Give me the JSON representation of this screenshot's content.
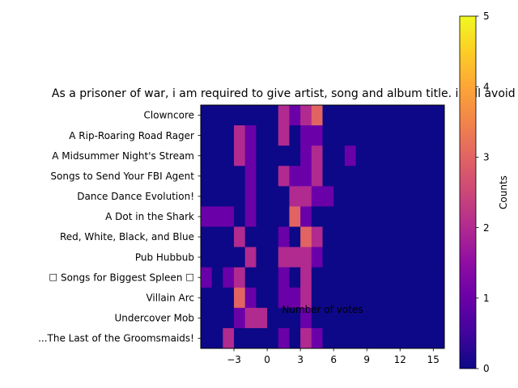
{
  "chart_data": {
    "type": "heatmap",
    "title": "As a prisoner of war, i am required to give artist, song and album title. i will avoid saying more.",
    "xlabel": "Number of votes",
    "ylabel": "",
    "x_bins": [
      -6,
      -5,
      -4,
      -3,
      -2,
      -1,
      0,
      1,
      2,
      3,
      4,
      5,
      6,
      7,
      8,
      9,
      10,
      11,
      12,
      13,
      14,
      15,
      16
    ],
    "xlim": [
      -6,
      16
    ],
    "x_ticks": [
      -3,
      0,
      3,
      6,
      9,
      12,
      15
    ],
    "x_tick_labels": [
      "−3",
      "0",
      "3",
      "6",
      "9",
      "12",
      "15"
    ],
    "categories": [
      "Clowncore",
      "A Rip-Roaring Road Rager",
      "A Midsummer Night's Stream",
      "Songs to Send Your FBI Agent",
      "Dance Dance Evolution!",
      "A Dot in the Shark",
      "Red, White, Black, and Blue",
      "Pub Hubbub",
      "☐ Songs for Biggest Spleen ☐",
      "Villain Arc",
      "Undercover Mob",
      "...The Last of the Groomsmaids!"
    ],
    "counts": [
      [
        0,
        0,
        0,
        0,
        0,
        0,
        0,
        2,
        1,
        2,
        3,
        0,
        0,
        0,
        0,
        0,
        0,
        0,
        0,
        0,
        0,
        0
      ],
      [
        0,
        0,
        0,
        2,
        1,
        0,
        0,
        2,
        0,
        1,
        1,
        0,
        0,
        0,
        0,
        0,
        0,
        0,
        0,
        0,
        0,
        0
      ],
      [
        0,
        0,
        0,
        2,
        1,
        0,
        0,
        0,
        0,
        1,
        2,
        0,
        0,
        1,
        0,
        0,
        0,
        0,
        0,
        0,
        0,
        0
      ],
      [
        0,
        0,
        0,
        0,
        1,
        0,
        0,
        2,
        1,
        1,
        2,
        0,
        0,
        0,
        0,
        0,
        0,
        0,
        0,
        0,
        0,
        0
      ],
      [
        0,
        0,
        0,
        0,
        1,
        0,
        0,
        0,
        2,
        2,
        1,
        1,
        0,
        0,
        0,
        0,
        0,
        0,
        0,
        0,
        0,
        0
      ],
      [
        1,
        1,
        1,
        0,
        1,
        0,
        0,
        0,
        3,
        1,
        0,
        0,
        0,
        0,
        0,
        0,
        0,
        0,
        0,
        0,
        0,
        0
      ],
      [
        0,
        0,
        0,
        2,
        0,
        0,
        0,
        1,
        0,
        3,
        2,
        0,
        0,
        0,
        0,
        0,
        0,
        0,
        0,
        0,
        0,
        0
      ],
      [
        0,
        0,
        0,
        0,
        2,
        0,
        0,
        2,
        2,
        2,
        1,
        0,
        0,
        0,
        0,
        0,
        0,
        0,
        0,
        0,
        0,
        0
      ],
      [
        1,
        0,
        1,
        2,
        0,
        0,
        0,
        1,
        0,
        2,
        0,
        0,
        0,
        0,
        0,
        0,
        0,
        0,
        0,
        0,
        0,
        0
      ],
      [
        0,
        0,
        0,
        3,
        1,
        0,
        0,
        1,
        1,
        2,
        0,
        0,
        0,
        0,
        0,
        0,
        0,
        0,
        0,
        0,
        0,
        0
      ],
      [
        0,
        0,
        0,
        1,
        2,
        2,
        0,
        0,
        0,
        1,
        0,
        0,
        0,
        0,
        0,
        0,
        0,
        0,
        0,
        0,
        0,
        0
      ],
      [
        0,
        0,
        2,
        0,
        0,
        0,
        0,
        1,
        0,
        2,
        1,
        0,
        0,
        0,
        0,
        0,
        0,
        0,
        0,
        0,
        0,
        0
      ]
    ],
    "colorbar": {
      "label": "Counts",
      "colormap": "plasma",
      "vmin": 0,
      "vmax": 5,
      "ticks": [
        0,
        1,
        2,
        3,
        4,
        5
      ],
      "tick_labels": [
        "0",
        "1",
        "2",
        "3",
        "4",
        "5"
      ]
    },
    "grid": false
  }
}
